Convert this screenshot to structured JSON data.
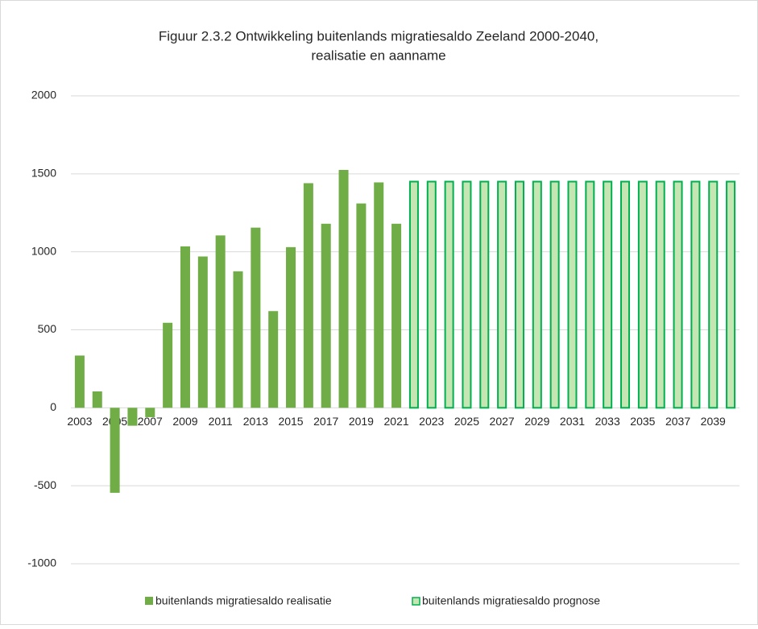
{
  "chart_data": {
    "type": "bar",
    "title": [
      "Figuur 2.3.2 Ontwikkeling buitenlands migratiesaldo Zeeland 2000-2040,",
      "realisatie en aanname"
    ],
    "categories": [
      "2003",
      null,
      "2005",
      null,
      "2007",
      null,
      "2009",
      null,
      "2011",
      null,
      "2013",
      null,
      "2015",
      null,
      "2017",
      null,
      "2019",
      null,
      "2021",
      null,
      "2023",
      null,
      "2025",
      null,
      "2027",
      null,
      "2029",
      null,
      "2031",
      null,
      "2033",
      null,
      "2035",
      null,
      "2037",
      null,
      "2039",
      null
    ],
    "series": [
      {
        "name": "buitenlands migratiesaldo realisatie",
        "color": "#70ad47",
        "values": [
          335,
          105,
          -545,
          -115,
          -60,
          545,
          1035,
          970,
          1105,
          875,
          1155,
          620,
          1030,
          1440,
          1180,
          1525,
          1310,
          1445,
          1180,
          null,
          null,
          null,
          null,
          null,
          null,
          null,
          null,
          null,
          null,
          null,
          null,
          null,
          null,
          null,
          null,
          null,
          null,
          null
        ]
      },
      {
        "name": "buitenlands migratiesaldo prognose",
        "color": "#c5e6b3",
        "edge_color": "#00b050",
        "values": [
          null,
          null,
          null,
          null,
          null,
          null,
          null,
          null,
          null,
          null,
          null,
          null,
          null,
          null,
          null,
          null,
          null,
          null,
          null,
          1450,
          1450,
          1450,
          1450,
          1450,
          1450,
          1450,
          1450,
          1450,
          1450,
          1450,
          1450,
          1450,
          1450,
          1450,
          1450,
          1450,
          1450,
          1450
        ]
      }
    ],
    "ylim": [
      -1000,
      2000
    ],
    "yticks": [
      -1000,
      -500,
      0,
      500,
      1000,
      1500,
      2000
    ],
    "grid": true,
    "legend": "bottom"
  }
}
